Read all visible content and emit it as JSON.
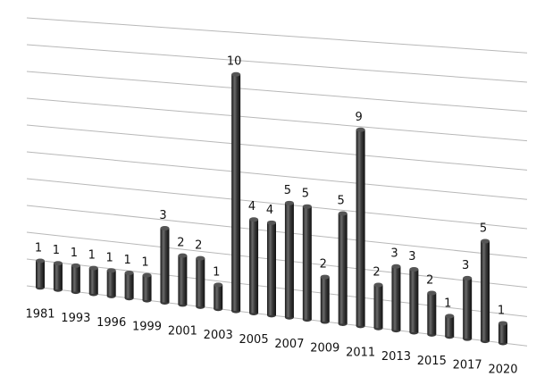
{
  "chart_data": {
    "type": "bar",
    "categories": [
      "1981",
      null,
      "1993",
      null,
      "1996",
      null,
      "1999",
      null,
      "2001",
      null,
      "2003",
      null,
      "2005",
      null,
      "2007",
      null,
      "2009",
      null,
      "2011",
      null,
      "2013",
      null,
      "2015",
      null,
      "2017",
      null,
      "2020"
    ],
    "values": [
      1,
      1,
      1,
      1,
      1,
      1,
      1,
      3,
      2,
      2,
      1,
      10,
      4,
      4,
      5,
      5,
      2,
      5,
      9,
      2,
      3,
      3,
      2,
      1,
      3,
      5,
      1
    ],
    "color": "#3a3a3a",
    "ylim": [
      0,
      10
    ],
    "yticks": [
      0,
      1,
      2,
      3,
      4,
      5,
      6,
      7,
      8,
      9,
      10
    ],
    "grid": true
  }
}
